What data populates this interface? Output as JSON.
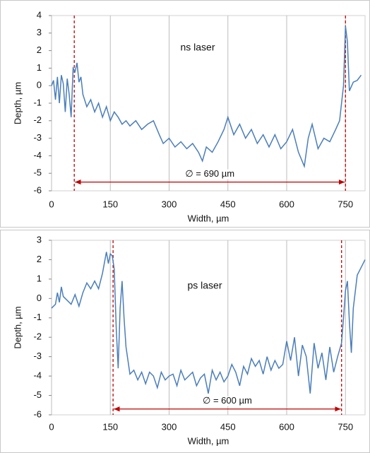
{
  "chart_data": [
    {
      "type": "line",
      "title": "ns laser",
      "x_label": "Width, µm",
      "y_label": "Depth, µm",
      "xlim": [
        0,
        800
      ],
      "xticks": [
        0,
        150,
        300,
        450,
        600,
        750
      ],
      "ylim": [
        -6,
        4
      ],
      "yticks": [
        -6,
        -5,
        -4,
        -3,
        -2,
        -1,
        0,
        1,
        2,
        3,
        4
      ],
      "grid": true,
      "series": [
        {
          "color": "#4a7ebb",
          "x": [
            0,
            5,
            10,
            15,
            20,
            25,
            30,
            35,
            40,
            45,
            50,
            55,
            60,
            65,
            70,
            75,
            80,
            90,
            100,
            110,
            120,
            130,
            140,
            150,
            160,
            170,
            180,
            190,
            200,
            215,
            230,
            245,
            260,
            275,
            285,
            300,
            315,
            330,
            345,
            360,
            375,
            385,
            395,
            410,
            425,
            440,
            450,
            465,
            480,
            495,
            510,
            525,
            540,
            555,
            570,
            585,
            600,
            615,
            630,
            645,
            655,
            665,
            680,
            695,
            710,
            725,
            735,
            745,
            750,
            755,
            760,
            770,
            780,
            790
          ],
          "values": [
            0.0,
            0.3,
            -0.8,
            0.5,
            -1.0,
            0.6,
            0.1,
            -1.5,
            0.4,
            -0.5,
            -1.8,
            1.0,
            0.8,
            1.3,
            0.2,
            0.5,
            -0.5,
            -1.2,
            -0.8,
            -1.5,
            -1.0,
            -1.8,
            -1.2,
            -2.0,
            -1.5,
            -1.8,
            -2.2,
            -2.0,
            -2.3,
            -2.0,
            -2.5,
            -2.2,
            -2.0,
            -2.8,
            -3.3,
            -3.0,
            -3.5,
            -3.2,
            -3.6,
            -3.3,
            -3.8,
            -4.3,
            -3.5,
            -3.8,
            -3.2,
            -2.5,
            -1.8,
            -2.8,
            -2.2,
            -3.0,
            -2.5,
            -3.3,
            -2.8,
            -3.5,
            -2.8,
            -3.6,
            -3.2,
            -2.5,
            -3.8,
            -4.6,
            -3.0,
            -2.2,
            -3.6,
            -3.0,
            -3.2,
            -2.5,
            -2.0,
            0.0,
            3.4,
            2.5,
            -0.3,
            0.2,
            0.3,
            0.6
          ]
        }
      ],
      "reference_lines": {
        "x": [
          58,
          750
        ],
        "color": "#c00000"
      },
      "annotation": {
        "text": "∅ = 690 µm",
        "y": -5.5
      }
    },
    {
      "type": "line",
      "title": "ps laser",
      "x_label": "Width, µm",
      "y_label": "Depth, µm",
      "xlim": [
        0,
        800
      ],
      "xticks": [
        0,
        150,
        300,
        450,
        600,
        750
      ],
      "ylim": [
        -6,
        3
      ],
      "yticks": [
        -6,
        -5,
        -4,
        -3,
        -2,
        -1,
        0,
        1,
        2,
        3
      ],
      "grid": true,
      "series": [
        {
          "color": "#4a7ebb",
          "x": [
            0,
            10,
            15,
            20,
            25,
            30,
            40,
            50,
            60,
            70,
            80,
            90,
            100,
            110,
            120,
            130,
            140,
            145,
            150,
            155,
            160,
            165,
            170,
            175,
            180,
            185,
            190,
            200,
            210,
            220,
            230,
            240,
            250,
            260,
            270,
            280,
            290,
            300,
            310,
            320,
            330,
            340,
            350,
            360,
            370,
            380,
            390,
            400,
            410,
            420,
            430,
            440,
            450,
            460,
            470,
            480,
            490,
            500,
            510,
            520,
            530,
            540,
            550,
            560,
            570,
            580,
            590,
            600,
            610,
            620,
            630,
            640,
            650,
            660,
            670,
            680,
            690,
            700,
            710,
            720,
            730,
            740,
            745,
            750,
            755,
            760,
            765,
            770,
            780,
            790,
            800
          ],
          "values": [
            -0.5,
            -0.3,
            0.3,
            -0.2,
            0.6,
            0.1,
            -0.1,
            -0.3,
            0.2,
            -0.4,
            0.3,
            0.8,
            0.5,
            0.9,
            0.5,
            1.3,
            2.4,
            1.8,
            2.3,
            2.2,
            1.5,
            -1.5,
            -3.6,
            -0.5,
            0.9,
            -1.0,
            -2.5,
            -3.9,
            -3.7,
            -4.2,
            -3.8,
            -4.4,
            -3.8,
            -4.0,
            -4.6,
            -3.8,
            -4.2,
            -4.0,
            -3.9,
            -4.5,
            -3.7,
            -4.2,
            -4.0,
            -3.8,
            -4.5,
            -4.1,
            -3.9,
            -4.9,
            -3.7,
            -4.2,
            -3.8,
            -4.3,
            -4.0,
            -3.4,
            -3.8,
            -4.5,
            -3.5,
            -3.9,
            -3.1,
            -3.5,
            -3.2,
            -3.9,
            -3.0,
            -3.7,
            -3.2,
            -3.6,
            -3.4,
            -2.2,
            -3.2,
            -2.0,
            -4.0,
            -2.4,
            -3.0,
            -4.9,
            -2.3,
            -3.6,
            -2.8,
            -4.2,
            -2.5,
            -3.8,
            -3.0,
            -2.3,
            -1.0,
            0.4,
            0.9,
            -1.2,
            -2.8,
            -0.5,
            1.2,
            1.6,
            2.0
          ]
        }
      ],
      "reference_lines": {
        "x": [
          157,
          740
        ],
        "color": "#c00000"
      },
      "annotation": {
        "text": "∅ = 600 µm",
        "y": -5.7
      }
    }
  ]
}
